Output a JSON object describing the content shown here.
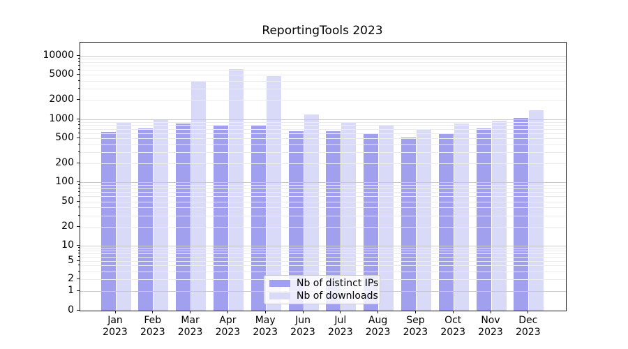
{
  "chart_data": {
    "type": "bar",
    "title": "ReportingTools 2023",
    "x_year": "2023",
    "categories": [
      "Jan",
      "Feb",
      "Mar",
      "Apr",
      "May",
      "Jun",
      "Jul",
      "Aug",
      "Sep",
      "Oct",
      "Nov",
      "Dec"
    ],
    "series": [
      {
        "name": "Nb of distinct IPs",
        "color": "#a0a0ee",
        "values": [
          630,
          710,
          855,
          780,
          800,
          650,
          650,
          585,
          515,
          585,
          710,
          1030
        ]
      },
      {
        "name": "Nb of downloads",
        "color": "#d9d9f8",
        "values": [
          900,
          1000,
          3900,
          6100,
          4800,
          1180,
          870,
          805,
          690,
          855,
          940,
          1370
        ]
      }
    ],
    "yscale": "symlog",
    "y_ticks": [
      0,
      1,
      2,
      5,
      10,
      20,
      50,
      100,
      200,
      500,
      1000,
      2000,
      5000,
      10000
    ],
    "ylim": [
      0,
      16000
    ],
    "xlabel": "",
    "ylabel": "",
    "grid": "both",
    "legend_position": "lower center"
  },
  "colors": {
    "major_grid": "#c9c9c9",
    "minor_grid": "#ececec",
    "frame": "#1a1a1a",
    "text": "#000000",
    "legend_border": "#cccccc",
    "background": "#ffffff"
  }
}
